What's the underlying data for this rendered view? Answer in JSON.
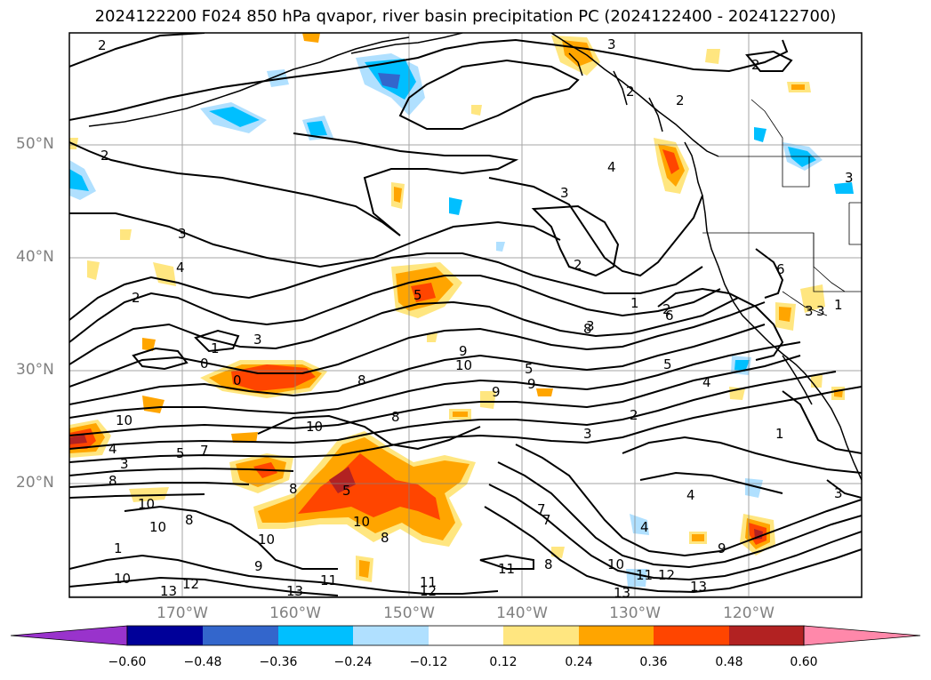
{
  "title": "2024122200 F024 850 hPa qvapor, river basin precipitation PC (2024122400 - 2024122700)",
  "map": {
    "lat_labels": [
      "50°N",
      "40°N",
      "30°N",
      "20°N"
    ],
    "lon_labels": [
      "170°W",
      "160°W",
      "150°W",
      "140°W",
      "130°W",
      "120°W"
    ],
    "contour_labels": [
      "2",
      "2",
      "2",
      "3",
      "4",
      "3",
      "2",
      "3",
      "3",
      "2",
      "4",
      "3",
      "2",
      "2",
      "3",
      "2",
      "1",
      "0",
      "0",
      "5",
      "8",
      "9",
      "10",
      "9",
      "9",
      "8",
      "10",
      "7",
      "5",
      "4",
      "1",
      "2",
      "3",
      "1",
      "6",
      "8",
      "5",
      "4",
      "4",
      "3",
      "10",
      "8",
      "8",
      "5",
      "7",
      "4",
      "8",
      "10",
      "8",
      "10",
      "9",
      "10",
      "10",
      "1",
      "10",
      "13",
      "12",
      "13",
      "11",
      "11",
      "12",
      "11",
      "8",
      "7",
      "10",
      "12",
      "11",
      "13",
      "13",
      "9",
      "3",
      "3",
      "1",
      "6",
      "5",
      "3"
    ]
  },
  "colorbar": {
    "ticks": [
      "−0.60",
      "−0.48",
      "−0.36",
      "−0.24",
      "−0.12",
      "0.12",
      "0.24",
      "0.36",
      "0.48",
      "0.60"
    ],
    "colors": [
      "#9933cc",
      "#000099",
      "#3366cc",
      "#00bfff",
      "#b0e0ff",
      "#ffffff",
      "#ffe680",
      "#ffa500",
      "#ff4500",
      "#b22222",
      "#ff88aa"
    ]
  }
}
